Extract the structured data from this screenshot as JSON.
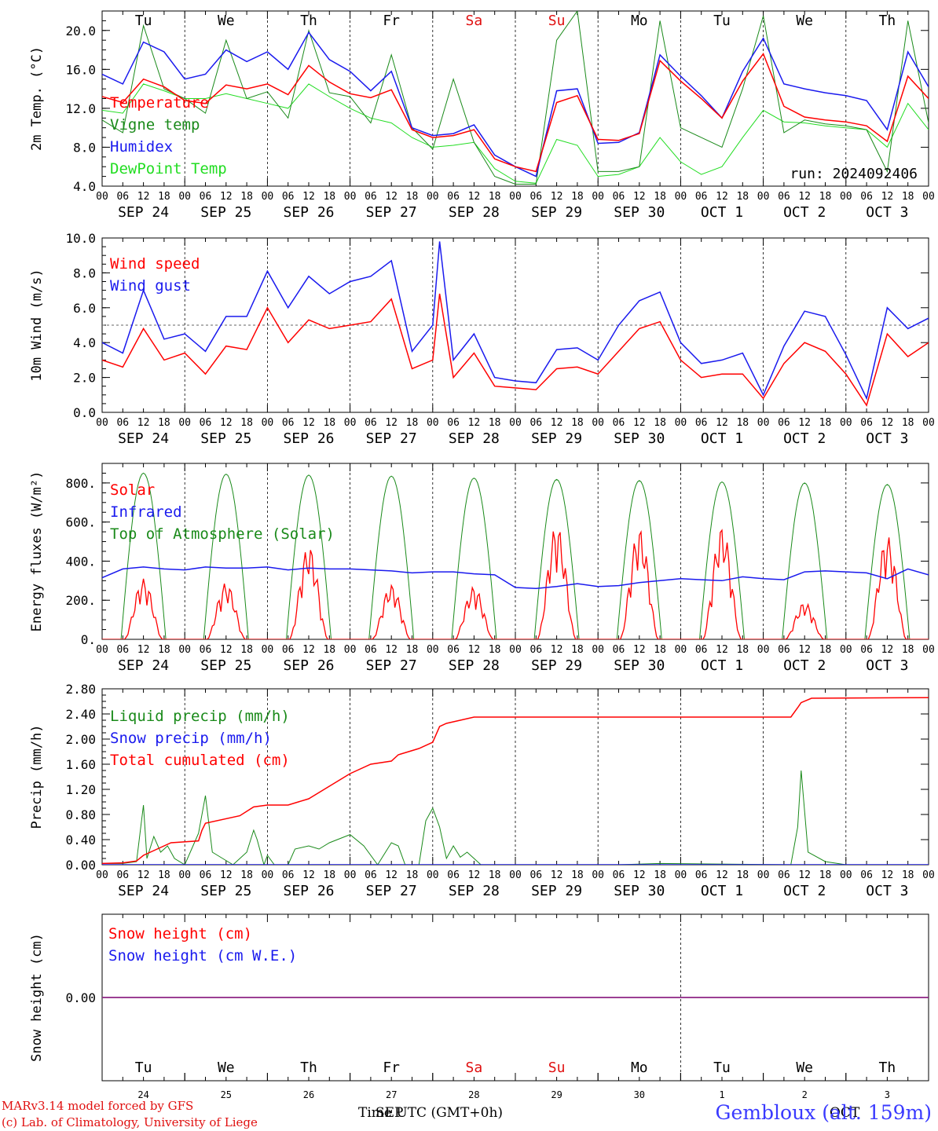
{
  "run_label": "run: 2024092406",
  "day_names": [
    {
      "label": "Tu",
      "color": "#000000"
    },
    {
      "label": "We",
      "color": "#000000"
    },
    {
      "label": "Th",
      "color": "#000000"
    },
    {
      "label": "Fr",
      "color": "#000000"
    },
    {
      "label": "Sa",
      "color": "#e01010"
    },
    {
      "label": "Su",
      "color": "#e01010"
    },
    {
      "label": "Mo",
      "color": "#000000"
    },
    {
      "label": "Tu",
      "color": "#000000"
    },
    {
      "label": "We",
      "color": "#000000"
    },
    {
      "label": "Th",
      "color": "#000000"
    }
  ],
  "date_labels": [
    "SEP 24",
    "SEP 25",
    "SEP 26",
    "SEP 27",
    "SEP 28",
    "SEP 29",
    "SEP 30",
    "OCT  1",
    "OCT  2",
    "OCT  3"
  ],
  "hour_ticks": [
    "00",
    "06",
    "12",
    "18"
  ],
  "day_numbers": [
    "24",
    "25",
    "26",
    "27",
    "28",
    "29",
    "30",
    "1",
    "2",
    "3"
  ],
  "footer": {
    "credit1": "MARv3.14 model forced by GFS",
    "credit2": "(c) Lab. of Climatology, University of Liege",
    "xaxis_title": "Time UTC (GMT+0h)",
    "month_sep": "SEP",
    "month_oct": "OCT",
    "station": "Gembloux (alt. 159m)"
  },
  "colors": {
    "red": "#ff0000",
    "green": "#1a8a1a",
    "blue": "#1a1aee",
    "lightgreen": "#22dd22",
    "purple": "#7a2a9a"
  },
  "chart_data": [
    {
      "type": "line",
      "ylabel": "2m Temp. (°C)",
      "ylim": [
        4.0,
        22.0
      ],
      "yticks": [
        "4.0",
        "8.0",
        "12.0",
        "16.0",
        "20.0"
      ],
      "grid": "vertical day separators",
      "legend_placement": "top-left",
      "x_unit": "hours since SEP 24 00 UTC",
      "series": [
        {
          "name": "Temperature",
          "color": "red",
          "x": [
            0,
            6,
            12,
            18,
            24,
            30,
            36,
            42,
            48,
            54,
            60,
            66,
            72,
            78,
            84,
            90,
            96,
            102,
            108,
            114,
            120,
            126,
            132,
            138,
            144,
            150,
            156,
            162,
            168,
            174,
            180,
            186,
            192,
            198,
            204,
            210,
            216,
            222,
            228,
            234,
            240
          ],
          "y": [
            13.2,
            12.6,
            15.0,
            14.2,
            12.8,
            12.5,
            14.4,
            14.0,
            14.5,
            13.4,
            16.4,
            14.7,
            13.5,
            13.1,
            13.9,
            9.8,
            9.0,
            9.2,
            9.8,
            6.8,
            6.0,
            5.5,
            12.6,
            13.3,
            8.8,
            8.7,
            9.4,
            16.9,
            14.8,
            13.0,
            11.0,
            14.8,
            17.6,
            12.2,
            11.1,
            10.8,
            10.6,
            10.2,
            8.6,
            15.3,
            13.0
          ]
        },
        {
          "name": "Vigne temp",
          "color": "green",
          "x": [
            0,
            6,
            12,
            18,
            24,
            30,
            36,
            42,
            48,
            54,
            60,
            66,
            72,
            78,
            84,
            90,
            96,
            102,
            108,
            114,
            120,
            126,
            132,
            138,
            144,
            150,
            156,
            162,
            168,
            174,
            180,
            186,
            192,
            198,
            204,
            210,
            216,
            222,
            228,
            234,
            240
          ],
          "y": [
            10.8,
            9.5,
            20.5,
            14.0,
            13.0,
            11.5,
            19.0,
            13.0,
            13.7,
            11.0,
            20.0,
            13.6,
            13.2,
            10.5,
            17.5,
            10.0,
            7.8,
            15.0,
            8.5,
            5.0,
            4.2,
            4.2,
            19.0,
            22.0,
            5.5,
            5.5,
            6.0,
            21.0,
            10.0,
            9.0,
            8.0,
            14.0,
            21.5,
            9.5,
            10.8,
            10.4,
            10.2,
            9.8,
            5.5,
            21.0,
            10.5
          ]
        },
        {
          "name": "Humidex",
          "color": "blue",
          "x": [
            0,
            6,
            12,
            18,
            24,
            30,
            36,
            42,
            48,
            54,
            60,
            66,
            72,
            78,
            84,
            90,
            96,
            102,
            108,
            114,
            120,
            126,
            132,
            138,
            144,
            150,
            156,
            162,
            168,
            174,
            180,
            186,
            192,
            198,
            204,
            210,
            216,
            222,
            228,
            234,
            240
          ],
          "y": [
            15.5,
            14.5,
            18.8,
            17.8,
            15.0,
            15.5,
            18.0,
            16.8,
            17.8,
            16.0,
            19.8,
            17.0,
            15.8,
            13.8,
            15.8,
            10.0,
            9.2,
            9.4,
            10.3,
            7.2,
            6.0,
            5.0,
            13.8,
            14.0,
            8.4,
            8.5,
            9.5,
            17.5,
            15.3,
            13.3,
            11.0,
            15.8,
            19.2,
            14.5,
            14.0,
            13.6,
            13.3,
            12.8,
            9.8,
            17.8,
            14.2
          ]
        },
        {
          "name": "DewPoint Temp",
          "color": "lightgreen",
          "x": [
            0,
            6,
            12,
            18,
            24,
            30,
            36,
            42,
            48,
            54,
            60,
            66,
            72,
            78,
            84,
            90,
            96,
            102,
            108,
            114,
            120,
            126,
            132,
            138,
            144,
            150,
            156,
            162,
            168,
            174,
            180,
            186,
            192,
            198,
            204,
            210,
            216,
            222,
            228,
            234,
            240
          ],
          "y": [
            11.8,
            11.5,
            14.5,
            13.8,
            13.0,
            13.0,
            13.5,
            13.0,
            12.5,
            12.0,
            14.5,
            13.2,
            12.0,
            11.0,
            10.5,
            9.0,
            8.0,
            8.2,
            8.5,
            5.8,
            4.5,
            4.3,
            8.8,
            8.2,
            5.0,
            5.2,
            6.0,
            9.0,
            6.5,
            5.2,
            6.0,
            9.0,
            11.8,
            10.6,
            10.5,
            10.2,
            10.0,
            9.8,
            8.0,
            12.5,
            9.8
          ]
        }
      ]
    },
    {
      "type": "line",
      "ylabel": "10m Wind (m/s)",
      "ylim": [
        0.0,
        10.0
      ],
      "yticks": [
        "0.0",
        "2.0",
        "4.0",
        "6.0",
        "8.0",
        "10.0"
      ],
      "reference_line": 5.0,
      "legend_placement": "top-left",
      "x_unit": "hours since SEP 24 00 UTC",
      "series": [
        {
          "name": "Wind speed",
          "color": "red",
          "x": [
            0,
            6,
            12,
            18,
            24,
            30,
            36,
            42,
            48,
            54,
            60,
            66,
            72,
            78,
            84,
            90,
            96,
            98,
            102,
            108,
            114,
            120,
            126,
            132,
            138,
            144,
            150,
            156,
            162,
            168,
            174,
            180,
            186,
            192,
            198,
            204,
            210,
            216,
            222,
            228,
            234,
            240
          ],
          "y": [
            3.0,
            2.6,
            4.8,
            3.0,
            3.4,
            2.2,
            3.8,
            3.6,
            6.0,
            4.0,
            5.3,
            4.8,
            5.0,
            5.2,
            6.5,
            2.5,
            3.0,
            6.8,
            2.0,
            3.4,
            1.5,
            1.4,
            1.3,
            2.5,
            2.6,
            2.2,
            3.5,
            4.8,
            5.2,
            3.0,
            2.0,
            2.2,
            2.2,
            0.8,
            2.8,
            4.0,
            3.5,
            2.2,
            0.4,
            4.5,
            3.2,
            4.0
          ]
        },
        {
          "name": "Wind gust",
          "color": "blue",
          "x": [
            0,
            6,
            12,
            18,
            24,
            30,
            36,
            42,
            48,
            54,
            60,
            66,
            72,
            78,
            84,
            90,
            96,
            98,
            102,
            108,
            114,
            120,
            126,
            132,
            138,
            144,
            150,
            156,
            162,
            168,
            174,
            180,
            186,
            192,
            198,
            204,
            210,
            216,
            222,
            228,
            234,
            240
          ],
          "y": [
            4.0,
            3.4,
            7.0,
            4.2,
            4.5,
            3.5,
            5.5,
            5.5,
            8.1,
            6.0,
            7.8,
            6.8,
            7.5,
            7.8,
            8.7,
            3.5,
            5.0,
            9.8,
            3.0,
            4.5,
            2.0,
            1.8,
            1.7,
            3.6,
            3.7,
            3.0,
            5.0,
            6.4,
            6.9,
            4.0,
            2.8,
            3.0,
            3.4,
            1.0,
            3.8,
            5.8,
            5.5,
            3.3,
            0.8,
            6.0,
            4.8,
            5.4
          ]
        }
      ]
    },
    {
      "type": "line",
      "ylabel": "Energy fluxes (W/m²)",
      "ylim": [
        0,
        900
      ],
      "yticks": [
        "0.",
        "200.",
        "400.",
        "600.",
        "800."
      ],
      "legend_placement": "top-left",
      "x_unit": "hours since SEP 24 00 UTC",
      "solar_peaks": [
        310,
        290,
        480,
        280,
        270,
        590,
        570,
        580,
        190,
        530
      ],
      "toa_peaks": [
        850,
        845,
        840,
        835,
        825,
        818,
        812,
        805,
        800,
        792
      ],
      "series": [
        {
          "name": "Solar",
          "color": "red"
        },
        {
          "name": "Infrared",
          "color": "blue",
          "x": [
            0,
            6,
            12,
            18,
            24,
            30,
            36,
            42,
            48,
            54,
            60,
            66,
            72,
            78,
            84,
            90,
            96,
            102,
            108,
            114,
            120,
            126,
            132,
            138,
            144,
            150,
            156,
            162,
            168,
            174,
            180,
            186,
            192,
            198,
            204,
            210,
            216,
            222,
            228,
            234,
            240
          ],
          "y": [
            315,
            360,
            370,
            360,
            355,
            370,
            365,
            365,
            370,
            355,
            365,
            360,
            360,
            355,
            350,
            340,
            345,
            345,
            335,
            330,
            265,
            260,
            270,
            285,
            270,
            275,
            290,
            300,
            310,
            305,
            300,
            320,
            310,
            305,
            345,
            350,
            345,
            340,
            310,
            360,
            330
          ]
        },
        {
          "name": "Top of Atmosphere (Solar)",
          "color": "green"
        }
      ]
    },
    {
      "type": "line",
      "ylabel": "Precip (mm/h)",
      "ylim": [
        0.0,
        2.8
      ],
      "yticks": [
        "0.00",
        "0.40",
        "0.80",
        "1.20",
        "1.60",
        "2.00",
        "2.40",
        "2.80"
      ],
      "legend_placement": "top-left",
      "x_unit": "hours since SEP 24 00 UTC",
      "series": [
        {
          "name": "Liquid precip (mm/h)",
          "color": "green",
          "x": [
            0,
            6,
            10,
            12,
            13,
            15,
            17,
            19,
            21,
            24,
            28,
            30,
            32,
            35,
            38,
            42,
            44,
            45,
            47,
            48,
            50,
            54,
            56,
            60,
            63,
            66,
            72,
            76,
            80,
            84,
            86,
            88,
            92,
            94,
            96,
            98,
            100,
            102,
            104,
            106,
            108,
            110,
            112,
            126,
            150,
            162,
            200,
            202,
            203,
            205,
            210,
            216,
            240
          ],
          "y": [
            0.02,
            0.02,
            0.05,
            0.95,
            0.1,
            0.45,
            0.2,
            0.3,
            0.1,
            0.0,
            0.5,
            1.1,
            0.2,
            0.1,
            0.0,
            0.2,
            0.55,
            0.4,
            0.0,
            0.15,
            0.0,
            0.0,
            0.25,
            0.3,
            0.25,
            0.35,
            0.48,
            0.3,
            0.0,
            0.35,
            0.3,
            0.0,
            0.0,
            0.7,
            0.9,
            0.6,
            0.1,
            0.3,
            0.12,
            0.2,
            0.1,
            0.0,
            0.0,
            0.0,
            0.0,
            0.02,
            0.0,
            0.6,
            1.5,
            0.2,
            0.05,
            0.0,
            0.0
          ]
        },
        {
          "name": "Snow precip (mm/h)",
          "color": "blue",
          "x": [
            0,
            240
          ],
          "y": [
            0.0,
            0.0
          ]
        },
        {
          "name": "Total cumulated (cm)",
          "color": "red",
          "x": [
            0,
            6,
            10,
            12,
            16,
            20,
            28,
            29,
            30,
            40,
            44,
            48,
            54,
            60,
            66,
            72,
            78,
            84,
            86,
            92,
            96,
            98,
            100,
            104,
            108,
            110,
            112,
            200,
            202,
            203,
            206,
            240
          ],
          "y": [
            0.02,
            0.03,
            0.06,
            0.15,
            0.25,
            0.35,
            0.38,
            0.55,
            0.66,
            0.78,
            0.92,
            0.95,
            0.95,
            1.05,
            1.25,
            1.45,
            1.6,
            1.65,
            1.75,
            1.85,
            1.95,
            2.2,
            2.25,
            2.3,
            2.35,
            2.35,
            2.35,
            2.35,
            2.5,
            2.58,
            2.65,
            2.66
          ]
        }
      ]
    },
    {
      "type": "line",
      "ylabel": "Snow height (cm)",
      "ylim": [
        -1.0,
        1.0
      ],
      "yticks": [
        "0.00"
      ],
      "legend_placement": "top-left",
      "series": [
        {
          "name": "Snow height (cm)",
          "color": "red",
          "x": [
            0,
            240
          ],
          "y": [
            0.0,
            0.0
          ]
        },
        {
          "name": "Snow height (cm W.E.)",
          "color": "blue",
          "x": [
            0,
            240
          ],
          "y": [
            0.0,
            0.0
          ]
        }
      ]
    }
  ]
}
